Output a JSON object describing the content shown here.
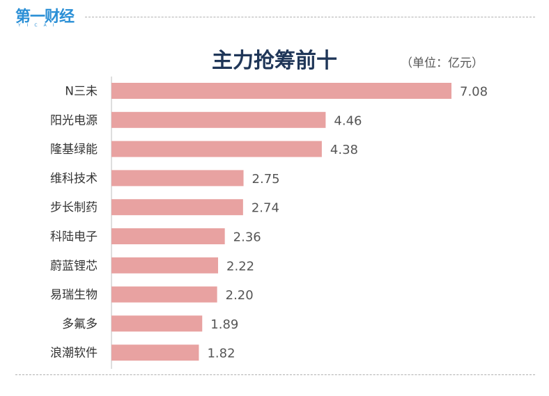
{
  "logo": {
    "text": "第一财经",
    "sub": "YICAI"
  },
  "chart_data": {
    "type": "bar",
    "orientation": "horizontal",
    "title": "主力抢筹前十",
    "unit": "（单位：亿元）",
    "categories": [
      "N三未",
      "阳光电源",
      "隆基绿能",
      "维科技术",
      "步长制药",
      "科陆电子",
      "蔚蓝锂芯",
      "易瑞生物",
      "多氟多",
      "浪潮软件"
    ],
    "values": [
      7.08,
      4.46,
      4.38,
      2.75,
      2.74,
      2.36,
      2.22,
      2.2,
      1.89,
      1.82
    ],
    "value_labels": [
      "7.08",
      "4.46",
      "4.38",
      "2.75",
      "2.74",
      "2.36",
      "2.22",
      "2.20",
      "1.89",
      "1.82"
    ],
    "xlim": [
      0,
      7.08
    ],
    "grid": false,
    "bar_color": "#e8a2a1"
  }
}
